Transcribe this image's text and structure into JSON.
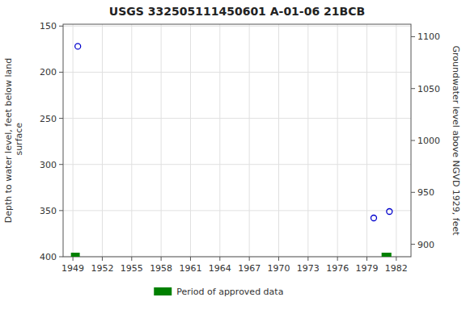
{
  "chart_data": {
    "type": "scatter",
    "title": "USGS 332505111450601 A-01-06 21BCB",
    "ylabel": "Depth to water level, feet below land\n surface",
    "y2label": "Groundwater level above NGVD 1929, feet",
    "xlim": [
      1948.0,
      1983.5
    ],
    "xticks": [
      1949,
      1952,
      1955,
      1958,
      1961,
      1964,
      1967,
      1970,
      1973,
      1976,
      1979,
      1982
    ],
    "ylim": [
      400,
      148
    ],
    "yticks": [
      150,
      200,
      250,
      300,
      350,
      400
    ],
    "y2lim": [
      888,
      1112
    ],
    "y2ticks": [
      900,
      950,
      1000,
      1050,
      1100
    ],
    "grid": true,
    "legend": "bottom",
    "series": [
      {
        "type": "scatter",
        "color": "#0000cc",
        "marker": "circle",
        "x": [
          1949.5,
          1979.7,
          1981.3
        ],
        "values": [
          172,
          358,
          351
        ]
      },
      {
        "type": "range",
        "name": "Period of approved data",
        "color": "#008000",
        "x_start": [
          1948.8,
          1980.5
        ],
        "x_end": [
          1949.7,
          1981.5
        ]
      }
    ]
  }
}
